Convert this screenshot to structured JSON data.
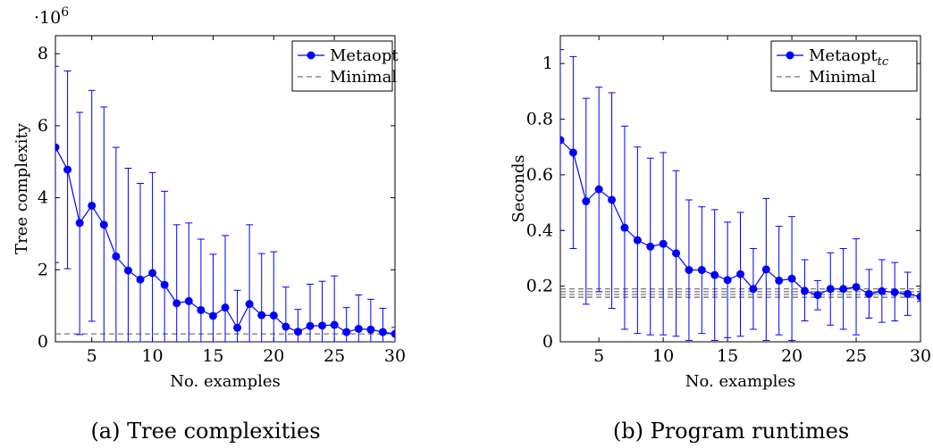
{
  "figure": {
    "caption_a": "(a) Tree complexities",
    "caption_b": "(b) Program runtimes"
  },
  "chart_data": [
    {
      "type": "line",
      "xlabel": "No. examples",
      "ylabel": "Tree complexity",
      "y_multiplier": "·10",
      "y_multiplier_exp": "6",
      "xlim": [
        2,
        30
      ],
      "ylim": [
        0,
        8.5
      ],
      "xticks": [
        5,
        10,
        15,
        20,
        25,
        30
      ],
      "yticks": [
        0,
        2,
        4,
        6,
        8
      ],
      "legend_position": "top-right",
      "grid": false,
      "x": [
        2,
        3,
        4,
        5,
        6,
        7,
        8,
        9,
        10,
        11,
        12,
        13,
        14,
        15,
        16,
        17,
        18,
        19,
        20,
        21,
        22,
        23,
        24,
        25,
        26,
        27,
        28,
        29,
        30
      ],
      "series": [
        {
          "name": "Metaopt",
          "name_sub": "",
          "color": "#0000ff",
          "values": [
            5.4,
            4.78,
            3.3,
            3.78,
            3.25,
            2.37,
            1.98,
            1.73,
            1.91,
            1.58,
            1.07,
            1.13,
            0.88,
            0.72,
            0.95,
            0.39,
            1.05,
            0.74,
            0.73,
            0.42,
            0.28,
            0.44,
            0.45,
            0.47,
            0.27,
            0.36,
            0.34,
            0.27,
            0.22
          ],
          "err_upper": [
            7.65,
            7.52,
            6.37,
            6.98,
            6.52,
            5.4,
            4.82,
            4.4,
            4.7,
            4.18,
            3.25,
            3.3,
            2.85,
            2.43,
            2.95,
            1.43,
            3.25,
            2.45,
            2.5,
            1.52,
            0.9,
            1.6,
            1.68,
            1.83,
            0.95,
            1.3,
            1.18,
            0.93,
            0.4
          ],
          "err_lower": [
            2.2,
            2.03,
            0.2,
            0.57,
            0.0,
            0.0,
            0.0,
            0.0,
            0.0,
            0.0,
            0.0,
            0.0,
            0.0,
            0.0,
            0.0,
            0.0,
            0.0,
            0.0,
            0.0,
            0.0,
            0.0,
            0.0,
            0.0,
            0.0,
            0.0,
            0.0,
            0.0,
            0.0,
            0.0
          ]
        },
        {
          "name": "Minimal",
          "color": "#555555",
          "dashed": true,
          "value": 0.22
        }
      ]
    },
    {
      "type": "line",
      "xlabel": "No. examples",
      "ylabel": "Seconds",
      "xlim": [
        2,
        30
      ],
      "ylim": [
        0,
        1.1
      ],
      "xticks": [
        5,
        10,
        15,
        20,
        25,
        30
      ],
      "yticks": [
        0,
        0.2,
        0.4,
        0.6,
        0.8,
        1
      ],
      "legend_position": "top-right",
      "grid": false,
      "x": [
        2,
        3,
        4,
        5,
        6,
        7,
        8,
        9,
        10,
        11,
        12,
        13,
        14,
        15,
        16,
        17,
        18,
        19,
        20,
        21,
        22,
        23,
        24,
        25,
        26,
        27,
        28,
        29,
        30
      ],
      "series": [
        {
          "name": "Metaopt",
          "name_sub": "tc",
          "color": "#0000ff",
          "values": [
            0.725,
            0.68,
            0.505,
            0.548,
            0.51,
            0.41,
            0.365,
            0.342,
            0.352,
            0.318,
            0.258,
            0.258,
            0.24,
            0.222,
            0.243,
            0.19,
            0.26,
            0.22,
            0.227,
            0.183,
            0.168,
            0.19,
            0.19,
            0.197,
            0.172,
            0.182,
            0.178,
            0.172,
            0.162
          ],
          "err_upper": [
            1.05,
            1.025,
            0.875,
            0.915,
            0.895,
            0.775,
            0.7,
            0.66,
            0.68,
            0.615,
            0.51,
            0.485,
            0.475,
            0.43,
            0.465,
            0.335,
            0.515,
            0.415,
            0.45,
            0.295,
            0.22,
            0.32,
            0.335,
            0.37,
            0.26,
            0.295,
            0.285,
            0.25,
            0.18
          ],
          "err_lower": [
            0.4,
            0.335,
            0.135,
            0.18,
            0.12,
            0.045,
            0.03,
            0.025,
            0.025,
            0.02,
            0.005,
            0.03,
            0.005,
            0.015,
            0.02,
            0.045,
            0.005,
            0.025,
            0.005,
            0.075,
            0.115,
            0.06,
            0.045,
            0.025,
            0.085,
            0.07,
            0.075,
            0.095,
            0.145
          ]
        },
        {
          "name": "Minimal",
          "color": "#555555",
          "dashed": true,
          "values_band": [
            0.16,
            0.17,
            0.18,
            0.19
          ]
        }
      ]
    }
  ]
}
